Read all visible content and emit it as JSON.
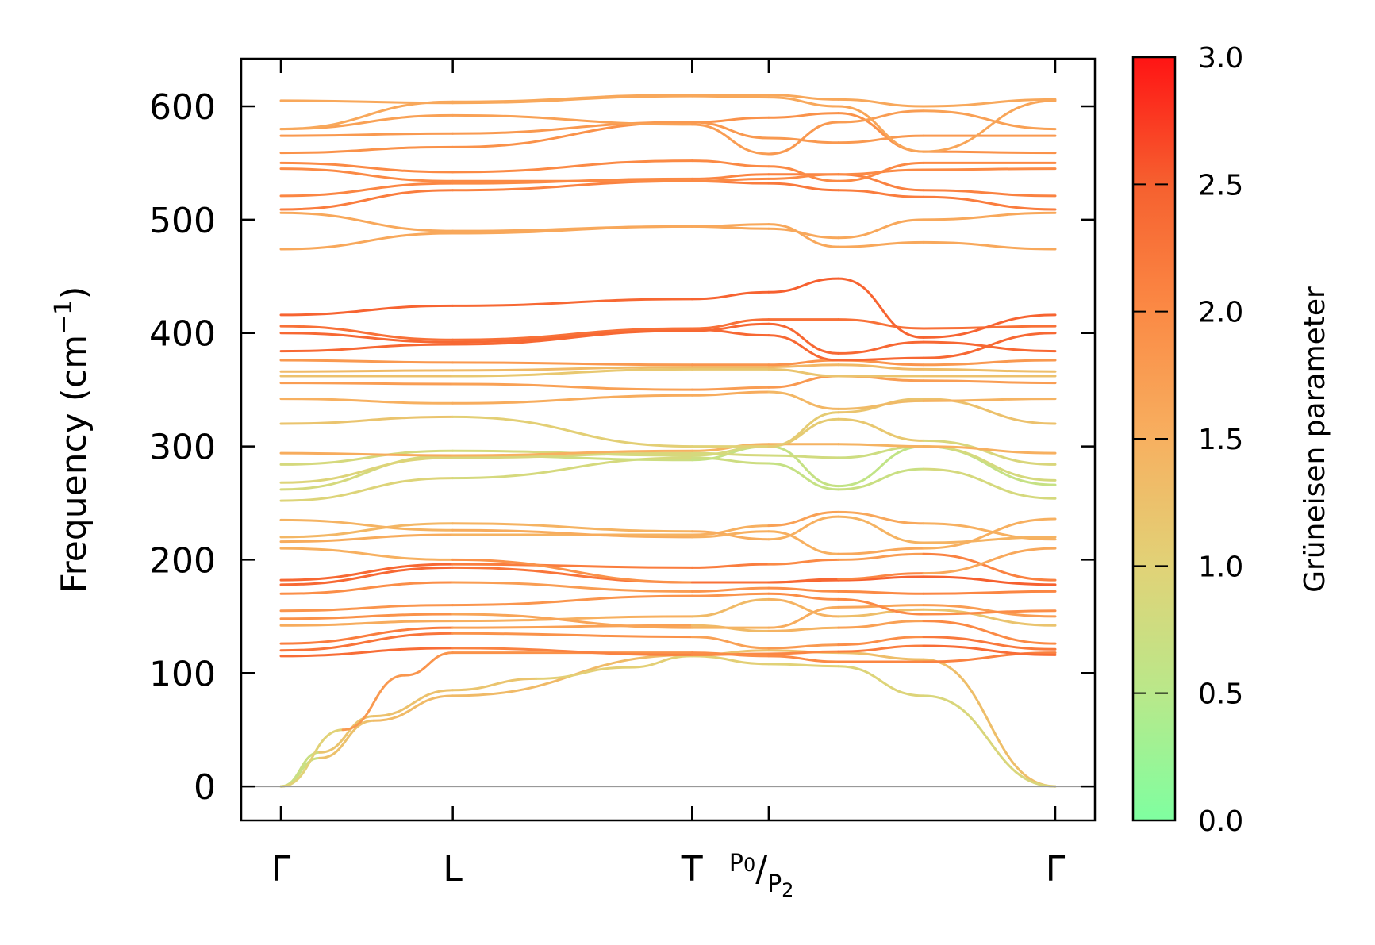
{
  "chart_data": {
    "type": "line",
    "ylabel": "Frequency (cm",
    "ylabel_sup": "−1",
    "ylabel_close": ")",
    "ylim": [
      -30,
      642
    ],
    "yticks": [
      0,
      100,
      200,
      300,
      400,
      500,
      600
    ],
    "kpoints": [
      {
        "label": "Γ",
        "pos": 0.0
      },
      {
        "label": "L",
        "pos": 0.222
      },
      {
        "label": "T",
        "pos": 0.531
      },
      {
        "label_main": "P",
        "label_sub1": "0",
        "label_slash": "/",
        "label_sub2": "2",
        "pos": 0.63
      },
      {
        "label": "Γ",
        "pos": 1.0
      }
    ],
    "colorbar": {
      "label": "Grüneisen parameter",
      "range": [
        0.0,
        3.0
      ],
      "ticks": [
        "0.0",
        "0.5",
        "1.0",
        "1.5",
        "2.0",
        "2.5",
        "3.0"
      ],
      "colors": [
        "#7fffa0",
        "#b9e88a",
        "#e1d277",
        "#f7b060",
        "#fb8a45",
        "#f6602f",
        "#ff1414"
      ]
    },
    "series": [
      {
        "x": [
          0,
          0.05,
          0.12,
          0.222,
          0.531,
          0.63,
          0.72,
          0.83,
          1
        ],
        "y": [
          0,
          25,
          58,
          80,
          116,
          120,
          118,
          112,
          0
        ],
        "g": [
          0.2,
          1.2,
          1.3,
          1.4,
          1.3,
          1.2,
          1.3,
          1.3,
          1.3
        ]
      },
      {
        "x": [
          0,
          0.05,
          0.12,
          0.222,
          0.33,
          0.45,
          0.531,
          0.63,
          0.72,
          0.83,
          1
        ],
        "y": [
          0,
          30,
          62,
          85,
          95,
          105,
          115,
          108,
          106,
          80,
          0
        ],
        "g": [
          0.2,
          1.2,
          1.2,
          1.3,
          1.1,
          1.0,
          1.1,
          1.0,
          1.0,
          0.9,
          0.9
        ]
      },
      {
        "x": [
          0,
          0.08,
          0.16,
          0.222,
          0.531,
          0.63,
          0.72,
          0.83,
          1
        ],
        "y": [
          0,
          50,
          98,
          118,
          118,
          115,
          110,
          110,
          118
        ],
        "g": [
          0.2,
          1.8,
          1.8,
          1.9,
          1.9,
          2.0,
          2.0,
          2.1,
          2.1
        ]
      },
      {
        "x": [
          0,
          0.222,
          0.531,
          0.63,
          0.72,
          0.83,
          1
        ],
        "y": [
          115,
          122,
          116,
          117,
          119,
          124,
          116
        ],
        "g": [
          2.5,
          2.2,
          2.0,
          2.0,
          2.1,
          2.2,
          2.5
        ]
      },
      {
        "x": [
          0,
          0.222,
          0.531,
          0.63,
          0.72,
          0.83,
          1
        ],
        "y": [
          120,
          135,
          132,
          122,
          125,
          132,
          121
        ],
        "g": [
          2.4,
          2.1,
          1.7,
          1.7,
          1.9,
          2.0,
          2.4
        ]
      },
      {
        "x": [
          0,
          0.222,
          0.531,
          0.63,
          0.72,
          0.83,
          1
        ],
        "y": [
          126,
          140,
          142,
          137,
          140,
          146,
          126
        ],
        "g": [
          2.3,
          2.0,
          1.4,
          1.3,
          1.6,
          1.8,
          2.2
        ]
      },
      {
        "x": [
          0,
          0.222,
          0.531,
          0.63,
          0.72,
          0.83,
          1
        ],
        "y": [
          142,
          146,
          150,
          165,
          150,
          156,
          142
        ],
        "g": [
          1.3,
          1.8,
          1.2,
          1.5,
          1.4,
          1.2,
          1.2
        ]
      },
      {
        "x": [
          0,
          0.222,
          0.531,
          0.63,
          0.72,
          0.83,
          1
        ],
        "y": [
          148,
          152,
          140,
          140,
          158,
          160,
          150
        ],
        "g": [
          2.0,
          1.8,
          1.5,
          1.4,
          1.7,
          1.6,
          1.9
        ]
      },
      {
        "x": [
          0,
          0.222,
          0.531,
          0.63,
          0.72,
          0.83,
          1
        ],
        "y": [
          155,
          160,
          168,
          170,
          165,
          152,
          155
        ],
        "g": [
          1.8,
          1.9,
          1.8,
          1.9,
          2.0,
          2.0,
          1.9
        ]
      },
      {
        "x": [
          0,
          0.222,
          0.531,
          0.63,
          0.72,
          0.83,
          1
        ],
        "y": [
          170,
          180,
          172,
          175,
          172,
          170,
          172
        ],
        "g": [
          2.2,
          1.7,
          1.8,
          1.9,
          2.0,
          2.0,
          2.1
        ]
      },
      {
        "x": [
          0,
          0.222,
          0.531,
          0.63,
          0.72,
          0.83,
          1
        ],
        "y": [
          178,
          193,
          180,
          180,
          182,
          185,
          178
        ],
        "g": [
          2.6,
          2.2,
          2.3,
          2.4,
          2.5,
          2.5,
          2.5
        ]
      },
      {
        "x": [
          0,
          0.222,
          0.531,
          0.63,
          0.72,
          0.83,
          1
        ],
        "y": [
          182,
          196,
          193,
          196,
          200,
          205,
          182
        ],
        "g": [
          2.6,
          2.2,
          2.1,
          2.2,
          1.8,
          1.7,
          2.5
        ]
      },
      {
        "x": [
          0,
          0.222,
          0.531,
          0.63,
          0.72,
          0.83,
          1
        ],
        "y": [
          210,
          200,
          180,
          180,
          183,
          188,
          210
        ],
        "g": [
          1.4,
          1.6,
          2.2,
          2.4,
          2.4,
          1.7,
          1.5
        ]
      },
      {
        "x": [
          0,
          0.222,
          0.531,
          0.63,
          0.72,
          0.83,
          1
        ],
        "y": [
          216,
          222,
          222,
          230,
          242,
          232,
          218
        ],
        "g": [
          1.6,
          1.5,
          1.4,
          1.6,
          1.8,
          1.4,
          1.6
        ]
      },
      {
        "x": [
          0,
          0.222,
          0.531,
          0.63,
          0.72,
          0.83,
          1
        ],
        "y": [
          220,
          232,
          225,
          218,
          238,
          215,
          220
        ],
        "g": [
          1.5,
          1.3,
          1.6,
          1.5,
          1.5,
          1.4,
          1.5
        ]
      },
      {
        "x": [
          0,
          0.222,
          0.531,
          0.63,
          0.72,
          0.83,
          1
        ],
        "y": [
          235,
          226,
          220,
          225,
          205,
          210,
          236
        ],
        "g": [
          1.4,
          1.5,
          1.6,
          1.4,
          1.6,
          1.6,
          1.4
        ]
      },
      {
        "x": [
          0,
          0.222,
          0.531,
          0.63,
          0.72,
          0.83,
          1
        ],
        "y": [
          252,
          272,
          290,
          285,
          262,
          280,
          254
        ],
        "g": [
          1.0,
          0.9,
          0.8,
          0.7,
          0.6,
          0.8,
          0.9
        ]
      },
      {
        "x": [
          0,
          0.222,
          0.531,
          0.63,
          0.72,
          0.83,
          1
        ],
        "y": [
          262,
          292,
          288,
          300,
          265,
          300,
          266
        ],
        "g": [
          0.9,
          0.8,
          0.7,
          0.6,
          0.7,
          0.5,
          0.8
        ]
      },
      {
        "x": [
          0,
          0.222,
          0.531,
          0.63,
          0.72,
          0.83,
          1
        ],
        "y": [
          268,
          290,
          294,
          292,
          290,
          300,
          270
        ],
        "g": [
          1.0,
          0.9,
          0.9,
          0.8,
          0.8,
          0.7,
          1.0
        ]
      },
      {
        "x": [
          0,
          0.222,
          0.531,
          0.63,
          0.72,
          0.83,
          1
        ],
        "y": [
          284,
          296,
          292,
          300,
          324,
          305,
          284
        ],
        "g": [
          0.8,
          0.9,
          0.8,
          0.9,
          1.3,
          1.0,
          0.8
        ]
      },
      {
        "x": [
          0,
          0.222,
          0.531,
          0.63,
          0.72,
          0.83,
          1
        ],
        "y": [
          294,
          292,
          296,
          302,
          302,
          300,
          294
        ],
        "g": [
          1.6,
          1.5,
          1.5,
          1.4,
          1.5,
          1.4,
          1.6
        ]
      },
      {
        "x": [
          0,
          0.222,
          0.531,
          0.63,
          0.72,
          0.83,
          1
        ],
        "y": [
          320,
          326,
          300,
          300,
          330,
          342,
          320
        ],
        "g": [
          1.3,
          1.1,
          1.0,
          1.0,
          1.2,
          1.2,
          1.3
        ]
      },
      {
        "x": [
          0,
          0.222,
          0.531,
          0.63,
          0.72,
          0.83,
          1
        ],
        "y": [
          342,
          338,
          345,
          348,
          333,
          340,
          342
        ],
        "g": [
          1.5,
          1.5,
          1.6,
          1.5,
          1.3,
          1.4,
          1.5
        ]
      },
      {
        "x": [
          0,
          0.222,
          0.531,
          0.63,
          0.72,
          0.83,
          1
        ],
        "y": [
          356,
          355,
          350,
          352,
          362,
          358,
          356
        ],
        "g": [
          1.8,
          1.7,
          1.7,
          1.8,
          1.8,
          1.7,
          1.8
        ]
      },
      {
        "x": [
          0,
          0.222,
          0.531,
          0.63,
          0.72,
          0.83,
          1
        ],
        "y": [
          362,
          362,
          368,
          368,
          362,
          362,
          362
        ],
        "g": [
          1.3,
          1.2,
          1.1,
          1.2,
          1.2,
          1.2,
          1.3
        ]
      },
      {
        "x": [
          0,
          0.222,
          0.531,
          0.63,
          0.72,
          0.83,
          1
        ],
        "y": [
          366,
          367,
          370,
          370,
          372,
          368,
          366
        ],
        "g": [
          1.3,
          1.4,
          1.3,
          1.4,
          1.4,
          1.3,
          1.3
        ]
      },
      {
        "x": [
          0,
          0.222,
          0.531,
          0.63,
          0.72,
          0.83,
          1
        ],
        "y": [
          376,
          374,
          372,
          372,
          376,
          372,
          376
        ],
        "g": [
          1.8,
          1.8,
          1.8,
          1.9,
          1.9,
          1.8,
          1.8
        ]
      },
      {
        "x": [
          0,
          0.222,
          0.531,
          0.63,
          0.72,
          0.83,
          1
        ],
        "y": [
          384,
          390,
          402,
          408,
          382,
          392,
          384
        ],
        "g": [
          2.4,
          2.4,
          2.4,
          2.4,
          2.4,
          2.4,
          2.4
        ]
      },
      {
        "x": [
          0,
          0.222,
          0.531,
          0.63,
          0.72,
          0.83,
          1
        ],
        "y": [
          400,
          392,
          403,
          398,
          376,
          378,
          400
        ],
        "g": [
          2.4,
          2.4,
          2.4,
          2.4,
          2.4,
          2.4,
          2.4
        ]
      },
      {
        "x": [
          0,
          0.222,
          0.531,
          0.63,
          0.72,
          0.83,
          1
        ],
        "y": [
          406,
          394,
          404,
          412,
          412,
          404,
          406
        ],
        "g": [
          2.3,
          2.3,
          2.3,
          2.3,
          2.3,
          2.3,
          2.3
        ]
      },
      {
        "x": [
          0,
          0.222,
          0.531,
          0.63,
          0.72,
          0.83,
          1
        ],
        "y": [
          416,
          424,
          430,
          436,
          448,
          396,
          416
        ],
        "g": [
          2.5,
          2.4,
          2.4,
          2.5,
          2.5,
          2.4,
          2.5
        ]
      },
      {
        "x": [
          0,
          0.222,
          0.531,
          0.63,
          0.72,
          0.83,
          1
        ],
        "y": [
          474,
          488,
          494,
          496,
          476,
          480,
          474
        ],
        "g": [
          1.6,
          1.6,
          1.6,
          1.6,
          1.6,
          1.6,
          1.6
        ]
      },
      {
        "x": [
          0,
          0.222,
          0.531,
          0.63,
          0.72,
          0.83,
          1
        ],
        "y": [
          506,
          490,
          494,
          492,
          484,
          500,
          506
        ],
        "g": [
          1.6,
          1.6,
          1.6,
          1.6,
          1.6,
          1.6,
          1.6
        ]
      },
      {
        "x": [
          0,
          0.222,
          0.531,
          0.63,
          0.72,
          0.83,
          1
        ],
        "y": [
          509,
          526,
          534,
          532,
          526,
          520,
          509
        ],
        "g": [
          2.2,
          2.1,
          2.1,
          2.2,
          2.2,
          2.1,
          2.2
        ]
      },
      {
        "x": [
          0,
          0.222,
          0.531,
          0.63,
          0.72,
          0.83,
          1
        ],
        "y": [
          521,
          532,
          536,
          540,
          540,
          526,
          521
        ],
        "g": [
          2.1,
          2.0,
          2.0,
          2.1,
          2.1,
          2.1,
          2.1
        ]
      },
      {
        "x": [
          0,
          0.222,
          0.531,
          0.63,
          0.72,
          0.83,
          1
        ],
        "y": [
          545,
          534,
          534,
          536,
          540,
          544,
          545
        ],
        "g": [
          2.0,
          2.0,
          2.0,
          2.0,
          2.0,
          2.0,
          2.0
        ]
      },
      {
        "x": [
          0,
          0.222,
          0.531,
          0.63,
          0.72,
          0.83,
          1
        ],
        "y": [
          550,
          542,
          552,
          547,
          534,
          550,
          550
        ],
        "g": [
          2.0,
          2.0,
          2.0,
          2.0,
          2.0,
          2.0,
          2.0
        ]
      },
      {
        "x": [
          0,
          0.222,
          0.531,
          0.63,
          0.72,
          0.83,
          1
        ],
        "y": [
          559,
          564,
          586,
          590,
          594,
          560,
          559
        ],
        "g": [
          1.9,
          1.9,
          1.9,
          1.9,
          1.9,
          1.9,
          1.9
        ]
      },
      {
        "x": [
          0,
          0.222,
          0.531,
          0.63,
          0.72,
          0.83,
          1
        ],
        "y": [
          574,
          576,
          586,
          572,
          568,
          574,
          574
        ],
        "g": [
          1.8,
          1.8,
          1.8,
          1.8,
          1.8,
          1.8,
          1.8
        ]
      },
      {
        "x": [
          0,
          0.222,
          0.531,
          0.63,
          0.72,
          0.83,
          1
        ],
        "y": [
          580,
          592,
          584,
          558,
          586,
          596,
          580
        ],
        "g": [
          1.7,
          1.7,
          1.7,
          1.8,
          1.8,
          1.7,
          1.7
        ]
      },
      {
        "x": [
          0,
          0.222,
          0.531,
          0.63,
          0.72,
          0.83,
          1
        ],
        "y": [
          605,
          603,
          609,
          608,
          600,
          560,
          605
        ],
        "g": [
          1.6,
          1.6,
          1.6,
          1.6,
          1.6,
          1.7,
          1.6
        ]
      },
      {
        "x": [
          0,
          0.222,
          0.531,
          0.63,
          0.72,
          0.83,
          1
        ],
        "y": [
          580,
          604,
          610,
          610,
          606,
          600,
          606
        ],
        "g": [
          1.6,
          1.6,
          1.6,
          1.6,
          1.6,
          1.6,
          1.6
        ]
      }
    ]
  }
}
